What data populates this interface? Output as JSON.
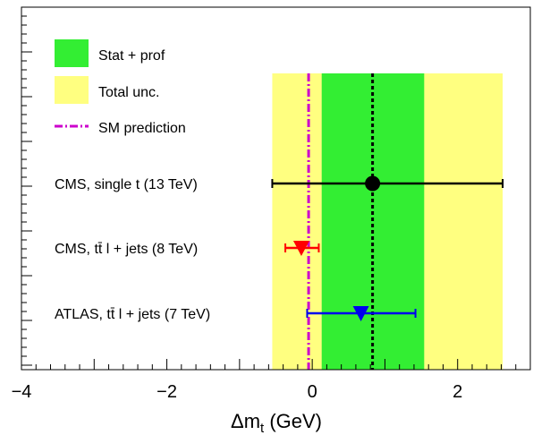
{
  "chart_data": {
    "type": "scatter",
    "title": "",
    "xlabel_main": "Δm",
    "xlabel_sub": "t",
    "xlabel_unit": " (GeV)",
    "xlim": [
      -4,
      3
    ],
    "x_ticks": [
      -4,
      -2,
      0,
      2
    ],
    "x_tick_labels": [
      "−4",
      "−2",
      "0",
      "2"
    ],
    "bands": {
      "total": {
        "name": "Total unc.",
        "min": -0.55,
        "max": 2.62,
        "color": "#ffff80"
      },
      "stat_prof": {
        "name": "Stat + prof",
        "min": 0.13,
        "max": 1.54,
        "color": "#33ee33"
      }
    },
    "central_value": 0.83,
    "sm_prediction": {
      "name": "SM prediction",
      "value": -0.05,
      "color": "#cc00cc"
    },
    "measurements": [
      {
        "label": "CMS, single t (13 TeV)",
        "value": 0.83,
        "err_low": 1.38,
        "err_high": 1.79,
        "marker": "circle",
        "color": "#000000"
      },
      {
        "label": "CMS, tt̄ l + jets (8 TeV)",
        "value": -0.15,
        "err_low": 0.22,
        "err_high": 0.24,
        "marker": "triangle-down",
        "color": "#ff0000"
      },
      {
        "label": "ATLAS, tt̄ l + jets (7 TeV)",
        "value": 0.67,
        "err_low": 0.74,
        "err_high": 0.75,
        "marker": "triangle-down",
        "color": "#0000ee"
      }
    ],
    "legend_placement": "top-left",
    "grid": false
  }
}
